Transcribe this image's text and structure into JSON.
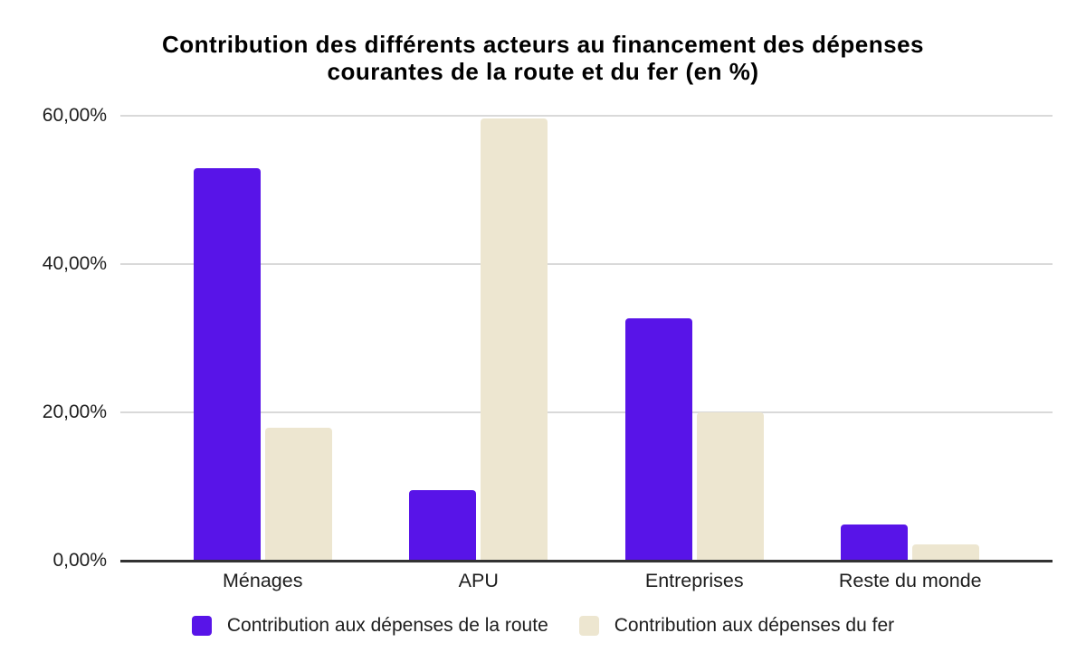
{
  "chart_data": {
    "type": "bar",
    "title": "Contribution des différents acteurs au financement des dépenses courantes de la route et du fer (en %)",
    "title_lines": [
      "Contribution des différents acteurs au financement des dépenses",
      "courantes de la route et du fer (en %)"
    ],
    "categories": [
      "Ménages",
      "APU",
      "Entreprises",
      "Reste du monde"
    ],
    "series": [
      {
        "name": "Contribution aux dépenses de la route",
        "color": "#5814e8",
        "values": [
          52.9,
          9.5,
          32.7,
          4.9
        ]
      },
      {
        "name": "Contribution aux dépenses du fer",
        "color": "#ede6d0",
        "values": [
          17.9,
          59.6,
          20.0,
          2.2
        ]
      }
    ],
    "xlabel": "",
    "ylabel": "",
    "ylim": [
      0,
      60
    ],
    "yticks": [
      {
        "value": 0,
        "label": "0,00%"
      },
      {
        "value": 20,
        "label": "20,00%"
      },
      {
        "value": 40,
        "label": "40,00%"
      },
      {
        "value": 60,
        "label": "60,00%"
      }
    ],
    "grid": true,
    "legend_position": "bottom",
    "colors": {
      "background": "#ffffff",
      "gridline": "#d9d9d9",
      "axis_line": "#323232",
      "label_text": "#1d1d1d",
      "title_text": "#000000"
    }
  }
}
